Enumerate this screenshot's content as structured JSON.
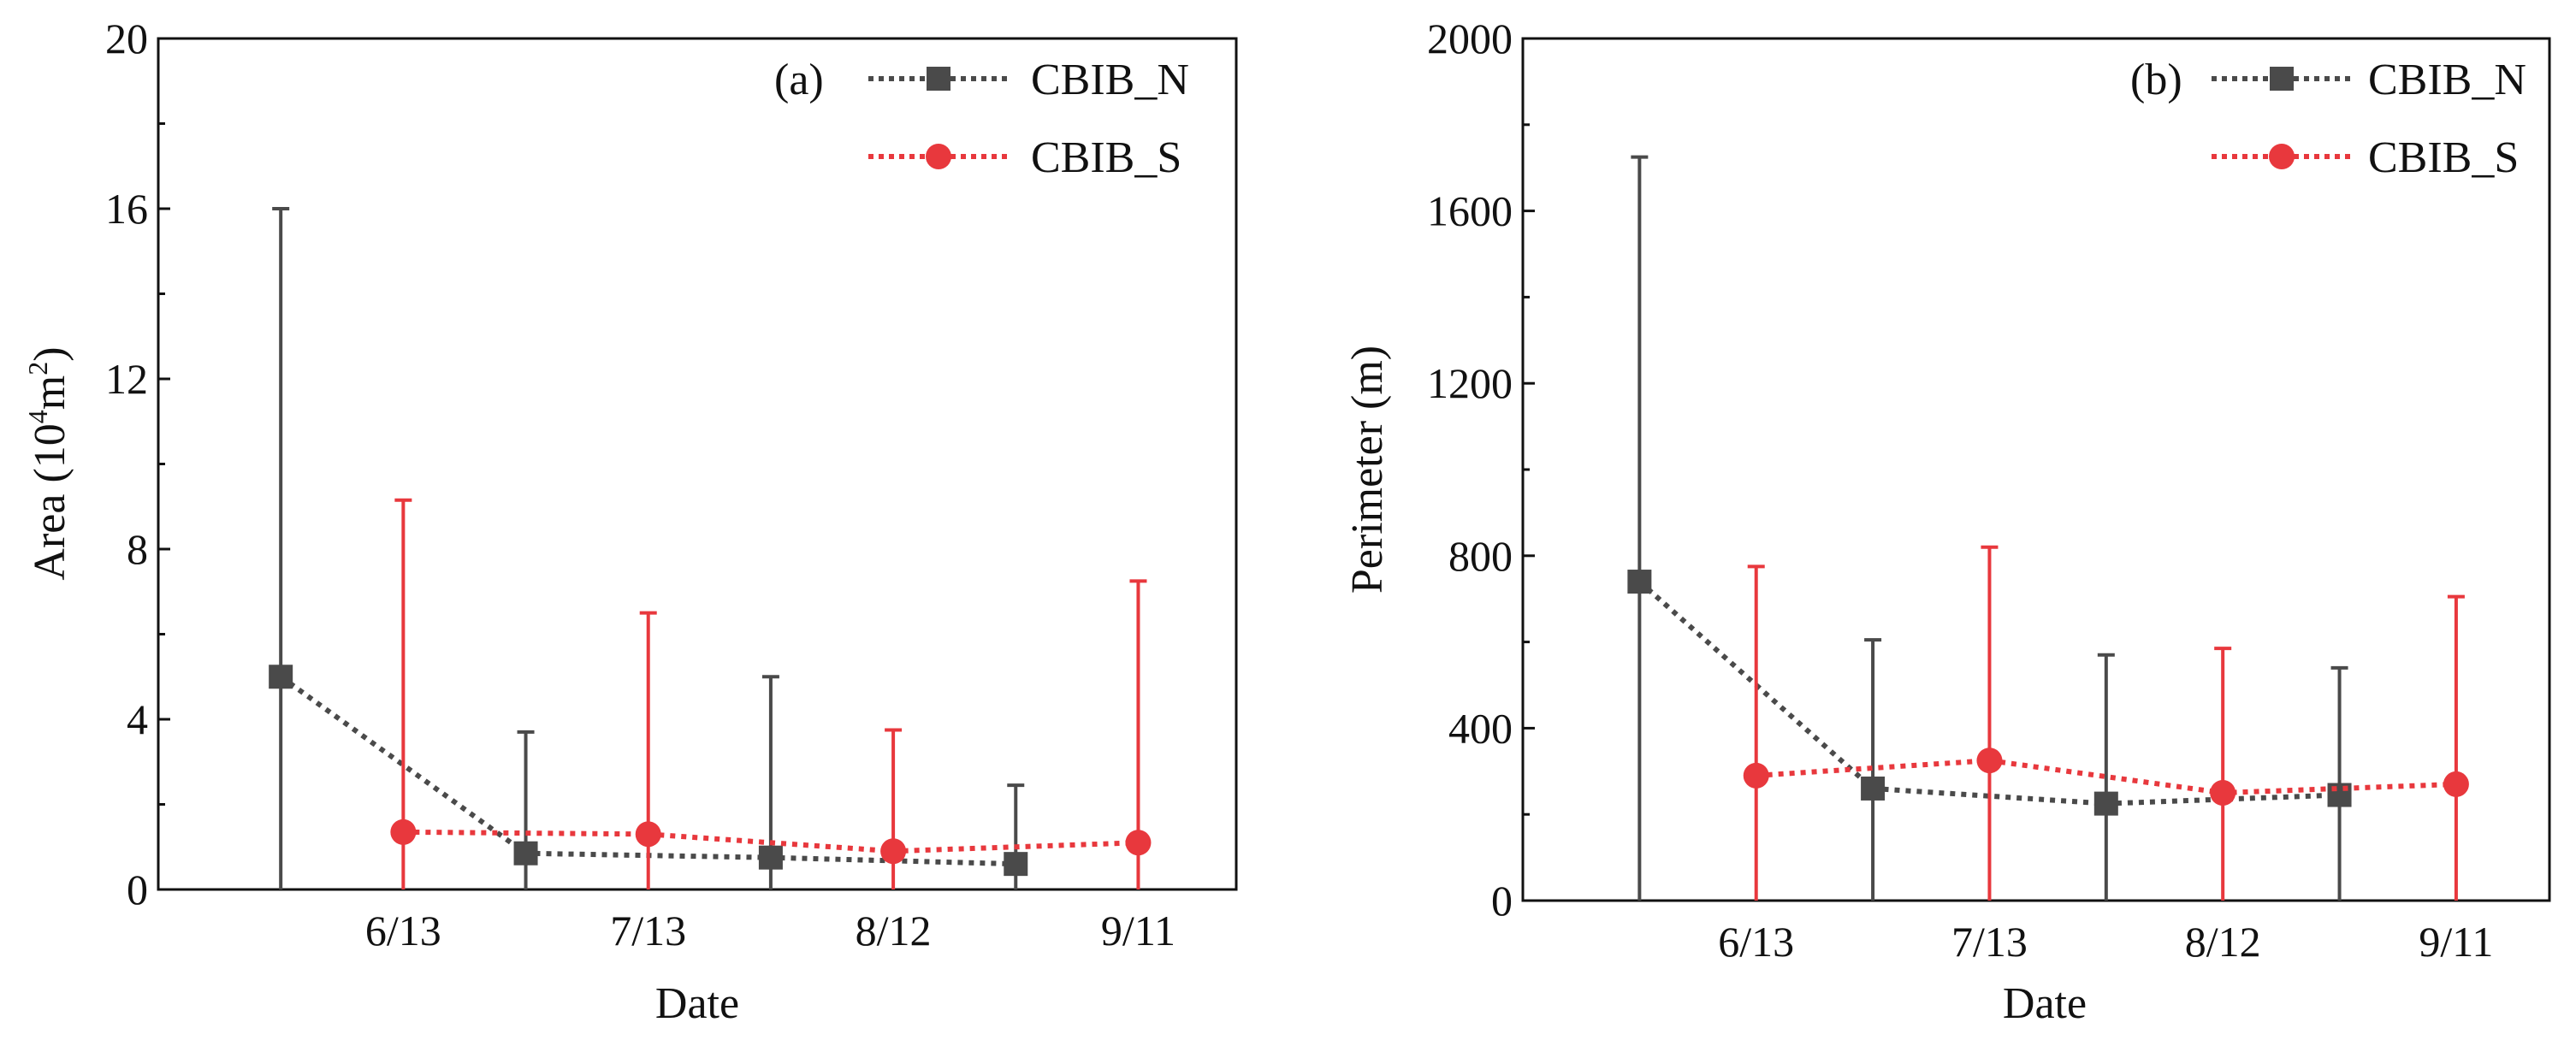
{
  "chart_data": [
    {
      "type": "line",
      "panel_label": "(a)",
      "xlabel": "Date",
      "ylabel_main": "Area (10",
      "ylabel_sup": "4",
      "ylabel_mid": "m",
      "ylabel_sup2": "2",
      "ylabel_end": ")",
      "ylim": [
        0,
        20
      ],
      "yticks": [
        "0",
        "4",
        "8",
        "12",
        "16",
        "20"
      ],
      "ytick_values": [
        0,
        4,
        8,
        12,
        16,
        20
      ],
      "xlim": [
        0,
        4.4
      ],
      "xticks": [
        "6/13",
        "7/13",
        "8/12",
        "9/11"
      ],
      "xtick_positions": [
        1,
        2,
        3,
        4
      ],
      "legend_position": "top-right",
      "series": [
        {
          "name": "CBIB_N",
          "color": "#4a4a4a",
          "marker": "square",
          "x": [
            0.5,
            1.5,
            2.5,
            3.5
          ],
          "values": [
            5.0,
            0.85,
            0.75,
            0.6
          ],
          "error_upper": [
            16.0,
            3.7,
            5.0,
            2.45
          ]
        },
        {
          "name": "CBIB_S",
          "color": "#e8383d",
          "marker": "circle",
          "x": [
            1,
            2,
            3,
            4
          ],
          "values": [
            1.35,
            1.3,
            0.9,
            1.1
          ],
          "error_upper": [
            9.15,
            6.5,
            3.75,
            7.25
          ]
        }
      ]
    },
    {
      "type": "line",
      "panel_label": "(b)",
      "xlabel": "Date",
      "ylabel_main": "Perimeter (m)",
      "ylim": [
        0,
        2000
      ],
      "yticks": [
        "0",
        "400",
        "800",
        "1200",
        "1600",
        "2000"
      ],
      "ytick_values": [
        0,
        400,
        800,
        1200,
        1600,
        2000
      ],
      "xlim": [
        0,
        4.4
      ],
      "xticks": [
        "6/13",
        "7/13",
        "8/12",
        "9/11"
      ],
      "xtick_positions": [
        1,
        2,
        3,
        4
      ],
      "legend_position": "top-right",
      "series": [
        {
          "name": "CBIB_N",
          "color": "#4a4a4a",
          "marker": "square",
          "x": [
            0.5,
            1.5,
            2.5,
            3.5
          ],
          "values": [
            740,
            260,
            225,
            245
          ],
          "error_upper": [
            1725,
            605,
            570,
            540
          ]
        },
        {
          "name": "CBIB_S",
          "color": "#e8383d",
          "marker": "circle",
          "x": [
            1,
            2,
            3,
            4
          ],
          "values": [
            290,
            325,
            250,
            270
          ],
          "error_upper": [
            775,
            820,
            585,
            705
          ]
        }
      ]
    }
  ]
}
